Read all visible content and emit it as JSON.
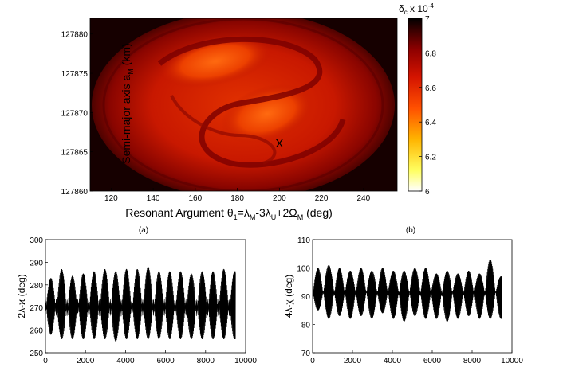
{
  "colors": {
    "axis": "#000000",
    "series": "#000000",
    "marker": "#ffffff",
    "colormap": [
      "#000000",
      "#3a0000",
      "#8e0000",
      "#d41400",
      "#ff5000",
      "#ffb400",
      "#ffff60",
      "#ffffff"
    ]
  },
  "chart_data": [
    {
      "id": "heatmap",
      "type": "heatmap",
      "xlabel": "Resonant Argument θ1=λM-3λU+2ΩM (deg)",
      "xlabel_parts": {
        "pre": "Resonant Argument θ",
        "s1": "1",
        "m1": "=λ",
        "s2": "M",
        "m2": "-3λ",
        "s3": "U",
        "m3": "+2Ω",
        "s4": "M",
        "post": " (deg)"
      },
      "ylabel": "Semi-major axis aM (km)",
      "ylabel_parts": {
        "pre": "Semi-major axis a",
        "sub": "M",
        "post": " (km)"
      },
      "xlim": [
        110,
        256
      ],
      "ylim": [
        127860,
        127882
      ],
      "xticks": [
        120,
        140,
        160,
        180,
        200,
        220,
        240
      ],
      "yticks": [
        127860,
        127865,
        127870,
        127875,
        127880
      ],
      "marker": {
        "label": "X",
        "x": 200,
        "y": 127866
      },
      "colorbar": {
        "title": "δc x 10-4",
        "title_parts": {
          "main": "δ",
          "sub": "c",
          "mid": " x 10",
          "sup": "-4"
        },
        "ticks": [
          6,
          6.2,
          6.4,
          6.6,
          6.8,
          7
        ],
        "range": [
          6,
          7
        ]
      },
      "caption": "(a)"
    },
    {
      "id": "line-left",
      "type": "line",
      "xlabel": "",
      "ylabel": "2λ-ϰ (deg)",
      "xlim": [
        0,
        10000
      ],
      "ylim": [
        250,
        300
      ],
      "xticks": [
        0,
        2000,
        4000,
        6000,
        8000,
        10000
      ],
      "yticks": [
        250,
        260,
        270,
        280,
        290,
        300
      ],
      "x_end": 9500,
      "series": [
        {
          "name": "2λ-ϰ",
          "center": 270.5,
          "period": 540,
          "peaks_upper": [
            283,
            287,
            284,
            285,
            286,
            287,
            286,
            287,
            287,
            288,
            286,
            286,
            286,
            285,
            286,
            286,
            287,
            286
          ],
          "troughs_upper": [
            267,
            266,
            266,
            267,
            266,
            266,
            266,
            266,
            266,
            266,
            266,
            266,
            266,
            266,
            266,
            266,
            266,
            266
          ],
          "peaks_lower": [
            274,
            274,
            274,
            274,
            274,
            274,
            274,
            274,
            274,
            274,
            274,
            274,
            274,
            274,
            274,
            274,
            274,
            274
          ],
          "troughs_lower": [
            258,
            256,
            256,
            256,
            256,
            256,
            255,
            256,
            256,
            256,
            256,
            256,
            256,
            256,
            256,
            256,
            256,
            256
          ]
        }
      ]
    },
    {
      "id": "line-right",
      "type": "line",
      "xlabel": "",
      "ylabel": "4λ-χ (deg)",
      "xlim": [
        0,
        10000
      ],
      "ylim": [
        70,
        110
      ],
      "xticks": [
        0,
        2000,
        4000,
        6000,
        8000,
        10000
      ],
      "yticks": [
        70,
        80,
        90,
        100,
        110
      ],
      "x_end": 9500,
      "series": [
        {
          "name": "4λ-χ",
          "center": 90,
          "period": 540,
          "peaks_upper": [
            100,
            101,
            100,
            99,
            100,
            99,
            100,
            99,
            99,
            100,
            100,
            98,
            99,
            98,
            99,
            98,
            103,
            97
          ],
          "troughs_upper": [
            90,
            91,
            90,
            91,
            90,
            91,
            90,
            91,
            90,
            91,
            90,
            91,
            90,
            91,
            90,
            91,
            90,
            91
          ],
          "peaks_lower": [
            92,
            92,
            92,
            92,
            92,
            92,
            92,
            92,
            92,
            92,
            92,
            92,
            92,
            92,
            92,
            92,
            92,
            92
          ],
          "troughs_lower": [
            85,
            82,
            83,
            82,
            83,
            82,
            84,
            82,
            81,
            83,
            82,
            82,
            81,
            82,
            83,
            82,
            82,
            82
          ]
        }
      ],
      "caption": "(b)"
    }
  ]
}
